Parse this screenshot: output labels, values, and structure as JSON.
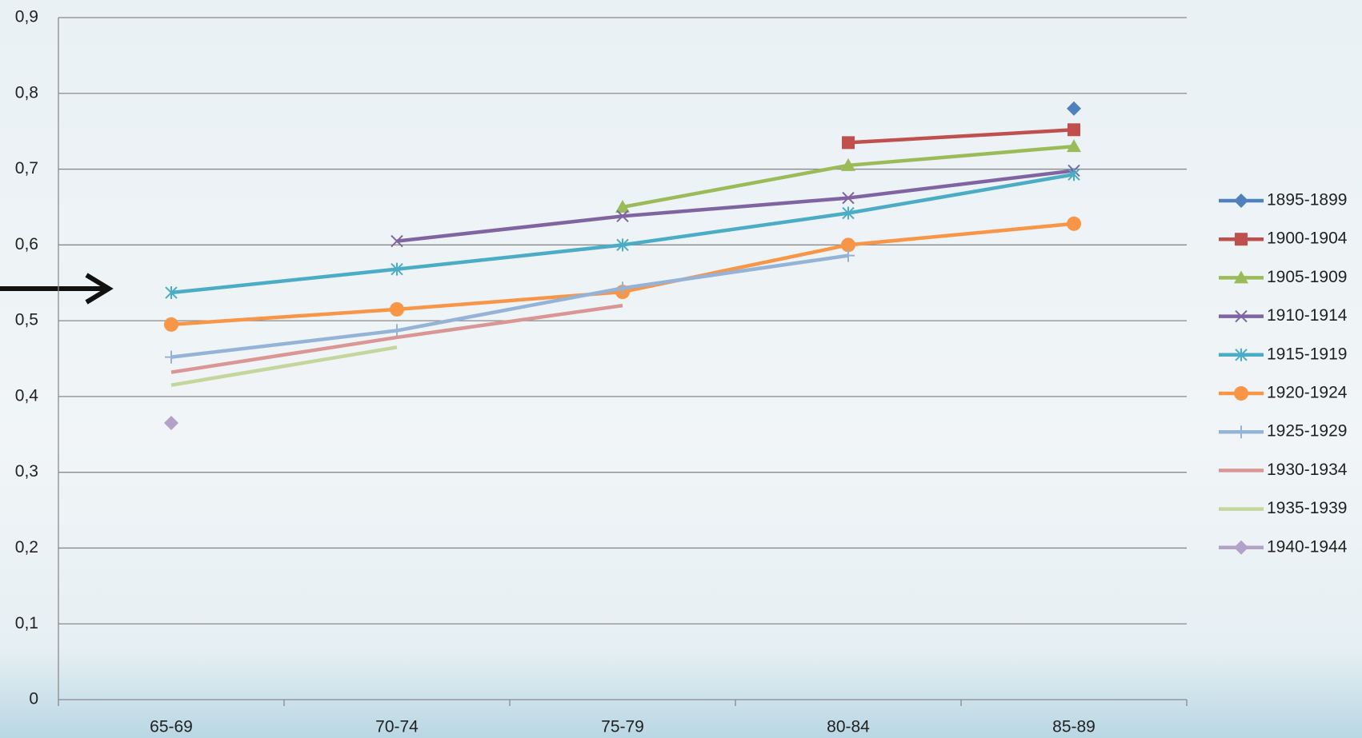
{
  "chart_data": {
    "type": "line",
    "categories": [
      "65-69",
      "70-74",
      "75-79",
      "80-84",
      "85-89"
    ],
    "series": [
      {
        "name": "1895-1899",
        "color": "#4f81bd",
        "marker": "diamond",
        "values": [
          null,
          null,
          null,
          null,
          0.78
        ]
      },
      {
        "name": "1900-1904",
        "color": "#c0504d",
        "marker": "square",
        "values": [
          null,
          null,
          null,
          0.735,
          0.752
        ]
      },
      {
        "name": "1905-1909",
        "color": "#9bbb59",
        "marker": "triangle",
        "values": [
          null,
          null,
          0.65,
          0.705,
          0.73
        ]
      },
      {
        "name": "1910-1914",
        "color": "#8064a2",
        "marker": "x",
        "values": [
          null,
          0.605,
          0.638,
          0.662,
          0.698
        ]
      },
      {
        "name": "1915-1919",
        "color": "#4bacc6",
        "marker": "asterisk",
        "values": [
          0.537,
          0.568,
          0.6,
          0.642,
          0.693
        ]
      },
      {
        "name": "1920-1924",
        "color": "#f79646",
        "marker": "circle",
        "values": [
          0.495,
          0.515,
          0.538,
          0.6,
          0.628
        ]
      },
      {
        "name": "1925-1929",
        "color": "#95b3d7",
        "marker": "plus",
        "values": [
          0.452,
          0.487,
          0.543,
          0.586,
          null
        ]
      },
      {
        "name": "1930-1934",
        "color": "#d99694",
        "marker": "none",
        "values": [
          0.432,
          0.478,
          0.52,
          null,
          null
        ]
      },
      {
        "name": "1935-1939",
        "color": "#c3d69b",
        "marker": "none",
        "values": [
          0.415,
          0.465,
          null,
          null,
          null
        ]
      },
      {
        "name": "1940-1944",
        "color": "#b3a2c7",
        "marker": "diamond",
        "values": [
          0.365,
          null,
          null,
          null,
          null
        ]
      }
    ],
    "ylim": [
      0,
      0.9
    ],
    "yticks": [
      0,
      {
        "value": 0.1,
        "label": "0,1"
      },
      {
        "value": 0.2,
        "label": "0,2"
      },
      {
        "value": 0.3,
        "label": "0,3"
      },
      {
        "value": 0.4,
        "label": "0,4"
      },
      {
        "value": 0.5,
        "label": "0,5"
      },
      {
        "value": 0.6,
        "label": "0,6"
      },
      {
        "value": 0.7,
        "label": "0,7"
      },
      {
        "value": 0.8,
        "label": "0,8"
      },
      {
        "value": 0.9,
        "label": "0,9"
      }
    ],
    "grid": true,
    "legend": "right"
  }
}
